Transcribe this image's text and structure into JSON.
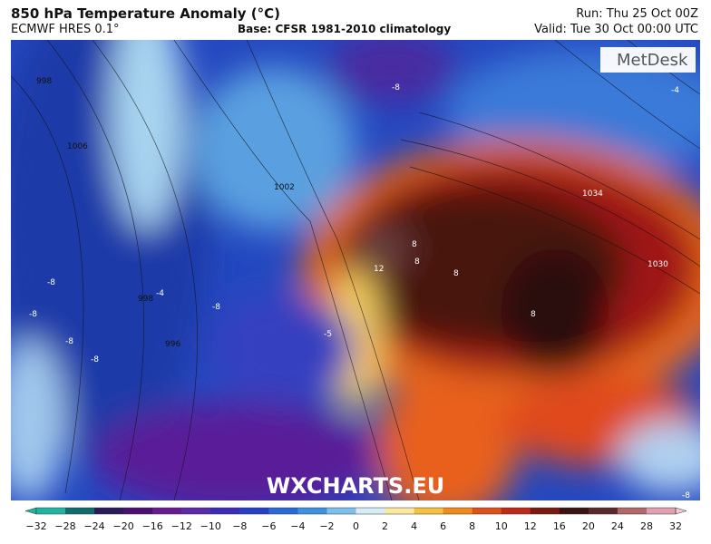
{
  "header": {
    "title": "850 hPa Temperature Anomaly (°C)",
    "model": "ECMWF HRES 0.1°",
    "base": "Base: CFSR 1981-2010 climatology",
    "run": "Run: Thu 25 Oct 00Z",
    "valid": "Valid: Tue 30 Oct 00:00 UTC"
  },
  "map": {
    "logo": "MetDesk",
    "watermark": "WXCHARTS.EU",
    "labels": [
      "998",
      "1006",
      "1002",
      "1034",
      "1030",
      "998",
      "996",
      "-8",
      "-8",
      "-8",
      "-8",
      "-8",
      "-8",
      "-4",
      "-4",
      "-5",
      "12",
      "8",
      "8",
      "8",
      "8",
      "-8"
    ]
  },
  "colorbar": {
    "ticks": [
      "−32",
      "−28",
      "−24",
      "−20",
      "−16",
      "−12",
      "−10",
      "−8",
      "−6",
      "−4",
      "−2",
      "0",
      "2",
      "4",
      "6",
      "8",
      "10",
      "12",
      "16",
      "20",
      "24",
      "28",
      "32"
    ],
    "colors": [
      "#1fb5a0",
      "#0f6e6a",
      "#2a1a5a",
      "#4a1070",
      "#6a1a90",
      "#5a2aa8",
      "#3c2bb8",
      "#2540c8",
      "#2a6ad8",
      "#3c92e0",
      "#7cc0ec",
      "#d8ecf8",
      "#fbe9a0",
      "#f6c040",
      "#f08a1a",
      "#e0501a",
      "#c02818",
      "#7a1a10",
      "#3a1410",
      "#5a2a2a",
      "#b06868",
      "#e0a0b0",
      "#f6c8d8"
    ]
  }
}
